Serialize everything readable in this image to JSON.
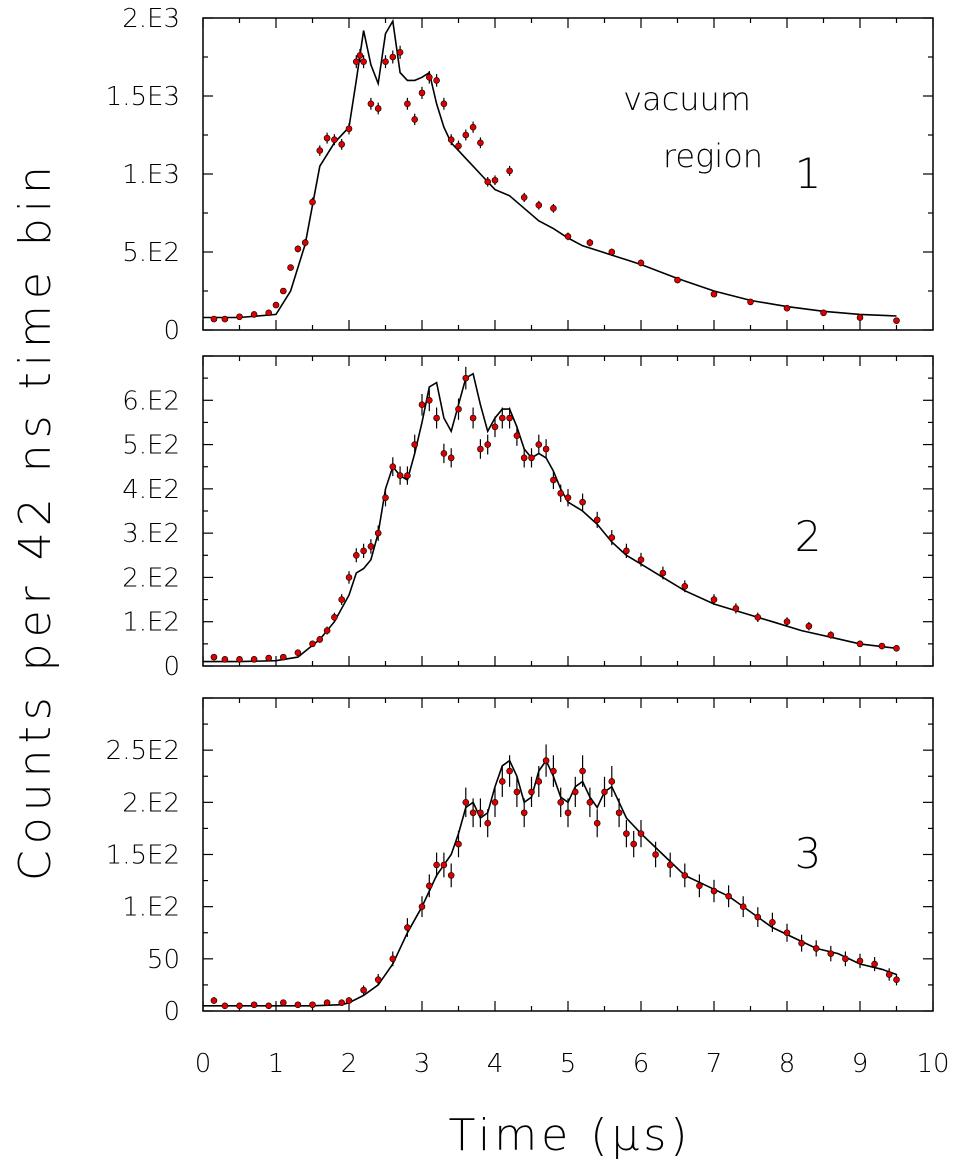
{
  "figure": {
    "ylabel": "Counts per 42 ns time bin",
    "xlabel": "Time (μs)",
    "x_ticks": [
      "0",
      "1",
      "2",
      "3",
      "4",
      "5",
      "6",
      "7",
      "8",
      "9",
      "10"
    ]
  },
  "chart_data": [
    {
      "type": "scatter",
      "panel_label": "1",
      "annotation": [
        "vacuum",
        "region"
      ],
      "xlim": [
        0,
        10
      ],
      "ylim": [
        0,
        2000
      ],
      "y_ticks": [
        0,
        500,
        1000,
        1500,
        2000
      ],
      "y_tick_labels": [
        "0",
        "5.E2",
        "1.E3",
        "1.5E3",
        "2.E3"
      ],
      "series": [
        {
          "kind": "data_points_with_error_bars",
          "color": "#dd0000",
          "x": [
            0.15,
            0.3,
            0.5,
            0.7,
            0.9,
            1.0,
            1.1,
            1.2,
            1.3,
            1.4,
            1.5,
            1.6,
            1.7,
            1.8,
            1.9,
            2.0,
            2.1,
            2.15,
            2.2,
            2.3,
            2.4,
            2.5,
            2.6,
            2.7,
            2.8,
            2.9,
            3.0,
            3.1,
            3.2,
            3.3,
            3.4,
            3.5,
            3.6,
            3.7,
            3.8,
            3.9,
            4.0,
            4.2,
            4.4,
            4.6,
            4.8,
            5.0,
            5.3,
            5.6,
            6.0,
            6.5,
            7.0,
            7.5,
            8.0,
            8.5,
            9.0,
            9.5
          ],
          "y": [
            70,
            70,
            85,
            100,
            110,
            160,
            250,
            400,
            520,
            560,
            820,
            1150,
            1230,
            1220,
            1190,
            1290,
            1720,
            1760,
            1720,
            1450,
            1420,
            1720,
            1750,
            1780,
            1450,
            1350,
            1520,
            1620,
            1600,
            1450,
            1220,
            1180,
            1250,
            1300,
            1200,
            950,
            960,
            1020,
            850,
            800,
            780,
            600,
            560,
            500,
            430,
            320,
            230,
            180,
            140,
            110,
            80,
            60
          ]
        },
        {
          "kind": "fit_curve",
          "color": "#000000",
          "x": [
            0,
            0.5,
            1.0,
            1.2,
            1.4,
            1.6,
            1.8,
            2.0,
            2.1,
            2.2,
            2.3,
            2.4,
            2.5,
            2.6,
            2.7,
            2.8,
            2.9,
            3.0,
            3.1,
            3.2,
            3.3,
            3.4,
            3.5,
            3.6,
            3.7,
            3.8,
            3.9,
            4.0,
            4.2,
            4.4,
            4.6,
            4.8,
            5.0,
            5.2,
            5.4,
            5.6,
            5.8,
            6.0,
            6.5,
            7.0,
            7.5,
            8.0,
            8.5,
            9.0,
            9.5
          ],
          "y": [
            80,
            80,
            100,
            250,
            550,
            1050,
            1200,
            1300,
            1600,
            1920,
            1700,
            1580,
            1900,
            1980,
            1650,
            1600,
            1600,
            1620,
            1650,
            1450,
            1300,
            1200,
            1150,
            1100,
            1050,
            1000,
            950,
            900,
            860,
            780,
            700,
            650,
            590,
            540,
            510,
            480,
            450,
            420,
            330,
            250,
            190,
            150,
            120,
            100,
            90
          ]
        }
      ]
    },
    {
      "type": "scatter",
      "panel_label": "2",
      "xlim": [
        0,
        10
      ],
      "ylim": [
        0,
        700
      ],
      "y_ticks": [
        0,
        100,
        200,
        300,
        400,
        500,
        600
      ],
      "y_tick_labels": [
        "0",
        "1.E2",
        "2.E2",
        "3.E2",
        "4.E2",
        "5.E2",
        "6.E2"
      ],
      "series": [
        {
          "kind": "data_points_with_error_bars",
          "color": "#dd0000",
          "x": [
            0.15,
            0.3,
            0.5,
            0.7,
            0.9,
            1.1,
            1.3,
            1.5,
            1.6,
            1.7,
            1.8,
            1.9,
            2.0,
            2.1,
            2.2,
            2.3,
            2.4,
            2.5,
            2.6,
            2.7,
            2.8,
            2.9,
            3.0,
            3.1,
            3.2,
            3.3,
            3.4,
            3.5,
            3.6,
            3.7,
            3.8,
            3.9,
            4.0,
            4.1,
            4.2,
            4.3,
            4.4,
            4.5,
            4.6,
            4.7,
            4.8,
            4.9,
            5.0,
            5.2,
            5.4,
            5.6,
            5.8,
            6.0,
            6.3,
            6.6,
            7.0,
            7.3,
            7.6,
            8.0,
            8.3,
            8.6,
            9.0,
            9.3,
            9.5
          ],
          "y": [
            20,
            15,
            15,
            15,
            18,
            20,
            30,
            50,
            60,
            80,
            110,
            150,
            200,
            250,
            260,
            270,
            300,
            380,
            450,
            430,
            430,
            500,
            590,
            600,
            560,
            480,
            470,
            580,
            650,
            560,
            490,
            500,
            540,
            560,
            560,
            520,
            470,
            470,
            500,
            490,
            420,
            390,
            380,
            370,
            330,
            290,
            260,
            240,
            210,
            180,
            150,
            130,
            110,
            100,
            90,
            70,
            50,
            45,
            40
          ]
        },
        {
          "kind": "fit_curve",
          "color": "#000000",
          "x": [
            0,
            0.5,
            1.0,
            1.3,
            1.6,
            1.8,
            2.0,
            2.1,
            2.2,
            2.3,
            2.4,
            2.5,
            2.6,
            2.7,
            2.8,
            2.9,
            3.0,
            3.1,
            3.2,
            3.3,
            3.4,
            3.5,
            3.6,
            3.7,
            3.8,
            3.9,
            4.0,
            4.1,
            4.2,
            4.3,
            4.4,
            4.5,
            4.6,
            4.7,
            4.8,
            4.9,
            5.0,
            5.2,
            5.4,
            5.6,
            5.8,
            6.0,
            6.3,
            6.6,
            7.0,
            7.4,
            7.8,
            8.2,
            8.6,
            9.0,
            9.5
          ],
          "y": [
            10,
            10,
            12,
            20,
            60,
            100,
            160,
            210,
            220,
            240,
            300,
            400,
            450,
            430,
            420,
            480,
            550,
            630,
            640,
            560,
            530,
            590,
            650,
            660,
            590,
            530,
            560,
            580,
            580,
            540,
            490,
            470,
            480,
            470,
            440,
            400,
            370,
            350,
            320,
            280,
            250,
            230,
            200,
            170,
            140,
            120,
            100,
            80,
            65,
            50,
            40
          ]
        }
      ]
    },
    {
      "type": "scatter",
      "panel_label": "3",
      "xlim": [
        0,
        10
      ],
      "ylim": [
        0,
        300
      ],
      "y_ticks": [
        0,
        50,
        100,
        150,
        200,
        250
      ],
      "y_tick_labels": [
        "0",
        "50",
        "1.E2",
        "1.5E2",
        "2.E2",
        "2.5E2"
      ],
      "series": [
        {
          "kind": "data_points_with_error_bars",
          "color": "#dd0000",
          "x": [
            0.15,
            0.3,
            0.5,
            0.7,
            0.9,
            1.1,
            1.3,
            1.5,
            1.7,
            1.9,
            2.0,
            2.2,
            2.4,
            2.6,
            2.8,
            3.0,
            3.1,
            3.2,
            3.3,
            3.4,
            3.5,
            3.6,
            3.7,
            3.8,
            3.9,
            4.0,
            4.1,
            4.2,
            4.3,
            4.4,
            4.5,
            4.6,
            4.7,
            4.8,
            4.9,
            5.0,
            5.1,
            5.2,
            5.3,
            5.4,
            5.5,
            5.6,
            5.7,
            5.8,
            5.9,
            6.0,
            6.2,
            6.4,
            6.6,
            6.8,
            7.0,
            7.2,
            7.4,
            7.6,
            7.8,
            8.0,
            8.2,
            8.4,
            8.6,
            8.8,
            9.0,
            9.2,
            9.4,
            9.5
          ],
          "y": [
            10,
            5,
            5,
            6,
            5,
            8,
            6,
            6,
            8,
            8,
            10,
            20,
            30,
            50,
            80,
            100,
            120,
            140,
            140,
            130,
            160,
            200,
            190,
            190,
            180,
            200,
            220,
            230,
            210,
            190,
            210,
            220,
            240,
            230,
            200,
            190,
            210,
            230,
            200,
            180,
            210,
            220,
            190,
            170,
            160,
            170,
            150,
            140,
            130,
            120,
            115,
            110,
            100,
            90,
            85,
            75,
            65,
            60,
            55,
            50,
            48,
            45,
            35,
            30
          ]
        },
        {
          "kind": "fit_curve",
          "color": "#000000",
          "x": [
            0,
            0.5,
            1.0,
            1.5,
            1.9,
            2.0,
            2.2,
            2.4,
            2.6,
            2.8,
            3.0,
            3.2,
            3.4,
            3.5,
            3.6,
            3.7,
            3.8,
            3.9,
            4.0,
            4.1,
            4.2,
            4.3,
            4.4,
            4.5,
            4.6,
            4.7,
            4.8,
            4.9,
            5.0,
            5.1,
            5.2,
            5.3,
            5.4,
            5.5,
            5.6,
            5.7,
            5.8,
            6.0,
            6.3,
            6.6,
            6.9,
            7.2,
            7.5,
            7.8,
            8.1,
            8.4,
            8.7,
            9.0,
            9.3,
            9.5
          ],
          "y": [
            5,
            5,
            5,
            5,
            6,
            8,
            15,
            25,
            45,
            75,
            100,
            130,
            150,
            170,
            195,
            200,
            185,
            190,
            215,
            235,
            240,
            225,
            200,
            205,
            230,
            240,
            225,
            205,
            200,
            215,
            220,
            205,
            195,
            210,
            215,
            200,
            185,
            170,
            150,
            130,
            120,
            110,
            95,
            80,
            70,
            60,
            55,
            45,
            40,
            35
          ]
        }
      ]
    }
  ]
}
